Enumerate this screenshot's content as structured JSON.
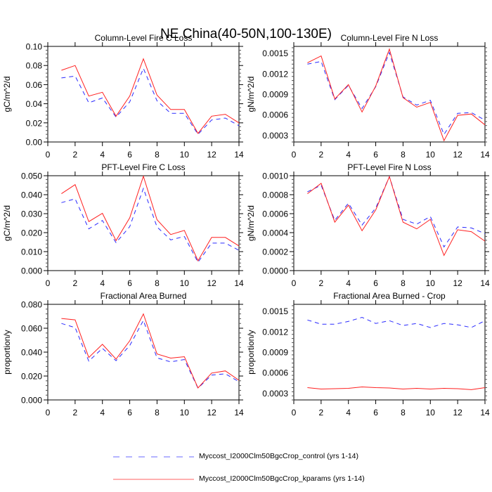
{
  "figure": {
    "title": "NE China(40-50N,100-130E)",
    "colors": {
      "control": "#2a2aff",
      "kparams": "#ff2020",
      "axis": "#000000"
    }
  },
  "legend": {
    "placement": "bottom-center",
    "entries": [
      {
        "label": "Myccost_I2000Clm50BgcCrop_control (yrs 1-14)",
        "series": "control",
        "style": "dashed"
      },
      {
        "label": "Myccost_I2000Clm50BgcCrop_kparams (yrs 1-14)",
        "series": "kparams",
        "style": "solid"
      }
    ]
  },
  "chart_data": [
    {
      "type": "line",
      "title": "Column-Level Fire C Loss",
      "xlabel": "",
      "ylabel": "gC/m^2/d",
      "right_label": "gN/m^2/d",
      "xlim": [
        0,
        14
      ],
      "xticks": [
        "0",
        "2",
        "4",
        "6",
        "8",
        "10",
        "12",
        "14"
      ],
      "ylim": [
        0,
        0.1
      ],
      "yticks": [
        "0.00",
        "0.02",
        "0.04",
        "0.06",
        "0.08",
        "0.10"
      ],
      "ytick_values": [
        0,
        0.02,
        0.04,
        0.06,
        0.08,
        0.1
      ],
      "x": [
        1,
        2,
        3,
        4,
        5,
        6,
        7,
        8,
        9,
        10,
        11,
        12,
        13,
        14
      ],
      "series": [
        {
          "name": "control",
          "values": [
            0.067,
            0.069,
            0.041,
            0.046,
            0.026,
            0.042,
            0.077,
            0.043,
            0.03,
            0.03,
            0.008,
            0.023,
            0.025,
            0.017
          ]
        },
        {
          "name": "kparams",
          "values": [
            0.075,
            0.08,
            0.048,
            0.052,
            0.027,
            0.048,
            0.087,
            0.049,
            0.034,
            0.034,
            0.009,
            0.027,
            0.029,
            0.02
          ]
        }
      ]
    },
    {
      "type": "line",
      "title": "Column-Level Fire N Loss",
      "xlabel": "",
      "ylabel": "gN/m^2/d",
      "right_label": "",
      "xlim": [
        0,
        14
      ],
      "xticks": [
        "0",
        "2",
        "4",
        "6",
        "8",
        "10",
        "12",
        "14"
      ],
      "ylim": [
        0.0002,
        0.0016
      ],
      "yticks": [
        "0.0003",
        "0.0006",
        "0.0009",
        "0.0012",
        "0.0015"
      ],
      "ytick_values": [
        0.0003,
        0.0006,
        0.0009,
        0.0012,
        0.0015
      ],
      "x": [
        1,
        2,
        3,
        4,
        5,
        6,
        7,
        8,
        9,
        10,
        11,
        12,
        13,
        14
      ],
      "series": [
        {
          "name": "control",
          "values": [
            0.00134,
            0.00138,
            0.00082,
            0.00103,
            0.00069,
            0.00101,
            0.00151,
            0.00086,
            0.00074,
            0.00081,
            0.00031,
            0.00062,
            0.00063,
            0.00052
          ]
        },
        {
          "name": "kparams",
          "values": [
            0.00136,
            0.00146,
            0.00083,
            0.00104,
            0.00064,
            0.00102,
            0.00156,
            0.00085,
            0.00071,
            0.00078,
            0.00022,
            0.00059,
            0.00061,
            0.00045
          ]
        }
      ]
    },
    {
      "type": "line",
      "title": "PFT-Level Fire C Loss",
      "xlabel": "",
      "ylabel": "gC/m^2/d",
      "right_label": "gN/m^2/d",
      "xlim": [
        0,
        14
      ],
      "xticks": [
        "0",
        "2",
        "4",
        "6",
        "8",
        "10",
        "12",
        "14"
      ],
      "ylim": [
        0,
        0.05
      ],
      "yticks": [
        "0.000",
        "0.010",
        "0.020",
        "0.030",
        "0.040",
        "0.050"
      ],
      "ytick_values": [
        0,
        0.01,
        0.02,
        0.03,
        0.04,
        0.05
      ],
      "x": [
        1,
        2,
        3,
        4,
        5,
        6,
        7,
        8,
        9,
        10,
        11,
        12,
        13,
        14
      ],
      "series": [
        {
          "name": "control",
          "values": [
            0.0358,
            0.0378,
            0.022,
            0.0264,
            0.0147,
            0.0232,
            0.0433,
            0.023,
            0.0162,
            0.018,
            0.0044,
            0.0145,
            0.0145,
            0.0107
          ]
        },
        {
          "name": "kparams",
          "values": [
            0.0405,
            0.0453,
            0.0258,
            0.0302,
            0.0158,
            0.0278,
            0.0497,
            0.0268,
            0.019,
            0.0212,
            0.0052,
            0.0175,
            0.0175,
            0.013
          ]
        }
      ]
    },
    {
      "type": "line",
      "title": "PFT-Level Fire N Loss",
      "xlabel": "",
      "ylabel": "gN/m^2/d",
      "right_label": "",
      "xlim": [
        0,
        14
      ],
      "xticks": [
        "0",
        "2",
        "4",
        "6",
        "8",
        "10",
        "12",
        "14"
      ],
      "ylim": [
        0,
        0.001
      ],
      "yticks": [
        "0.0000",
        "0.0002",
        "0.0004",
        "0.0006",
        "0.0008",
        "0.0010"
      ],
      "ytick_values": [
        0,
        0.0002,
        0.0004,
        0.0006,
        0.0008,
        0.001
      ],
      "x": [
        1,
        2,
        3,
        4,
        5,
        6,
        7,
        8,
        9,
        10,
        11,
        12,
        13,
        14
      ],
      "series": [
        {
          "name": "control",
          "values": [
            0.00083,
            0.0009,
            0.00053,
            0.00071,
            0.00048,
            0.00066,
            0.00099,
            0.00054,
            0.00049,
            0.00057,
            0.00025,
            0.00046,
            0.00045,
            0.00039
          ]
        },
        {
          "name": "kparams",
          "values": [
            0.00081,
            0.00092,
            0.00051,
            0.00069,
            0.00042,
            0.00064,
            0.00099,
            0.00051,
            0.00044,
            0.00054,
            0.00016,
            0.00043,
            0.00041,
            0.00031
          ]
        }
      ]
    },
    {
      "type": "line",
      "title": "Fractional Area Burned",
      "xlabel": "",
      "ylabel": "proportion/y",
      "right_label": "proportion/y",
      "xlim": [
        0,
        14
      ],
      "xticks": [
        "0",
        "2",
        "4",
        "6",
        "8",
        "10",
        "12",
        "14"
      ],
      "ylim": [
        0,
        0.08
      ],
      "yticks": [
        "0.000",
        "0.020",
        "0.040",
        "0.060",
        "0.080"
      ],
      "ytick_values": [
        0,
        0.02,
        0.04,
        0.06,
        0.08
      ],
      "x": [
        1,
        2,
        3,
        4,
        5,
        6,
        7,
        8,
        9,
        10,
        11,
        12,
        13,
        14
      ],
      "series": [
        {
          "name": "control",
          "values": [
            0.064,
            0.0605,
            0.0325,
            0.0432,
            0.0328,
            0.0455,
            0.0665,
            0.0352,
            0.0318,
            0.0338,
            0.0098,
            0.0208,
            0.0218,
            0.0153
          ]
        },
        {
          "name": "kparams",
          "values": [
            0.0682,
            0.067,
            0.0355,
            0.0465,
            0.0342,
            0.0495,
            0.072,
            0.0385,
            0.035,
            0.0362,
            0.01,
            0.0225,
            0.0243,
            0.0165
          ]
        }
      ]
    },
    {
      "type": "line",
      "title": "Fractional Area Burned - Crop",
      "xlabel": "",
      "ylabel": "proportion/y",
      "right_label": "",
      "xlim": [
        0,
        14
      ],
      "xticks": [
        "0",
        "2",
        "4",
        "6",
        "8",
        "10",
        "12",
        "14"
      ],
      "ylim": [
        0.0002,
        0.0016
      ],
      "yticks": [
        "0.0003",
        "0.0006",
        "0.0009",
        "0.0012",
        "0.0015"
      ],
      "ytick_values": [
        0.0003,
        0.0006,
        0.0009,
        0.0012,
        0.0015
      ],
      "x": [
        1,
        2,
        3,
        4,
        5,
        6,
        7,
        8,
        9,
        10,
        11,
        12,
        13,
        14
      ],
      "series": [
        {
          "name": "control",
          "values": [
            0.00137,
            0.00131,
            0.00131,
            0.00135,
            0.00141,
            0.00132,
            0.00136,
            0.00129,
            0.00132,
            0.00126,
            0.00132,
            0.0013,
            0.00126,
            0.00136
          ]
        },
        {
          "name": "kparams",
          "values": [
            0.00038,
            0.00036,
            0.000365,
            0.00037,
            0.00039,
            0.00038,
            0.000375,
            0.00036,
            0.00037,
            0.00036,
            0.00037,
            0.000365,
            0.00035,
            0.00038
          ]
        }
      ]
    }
  ]
}
